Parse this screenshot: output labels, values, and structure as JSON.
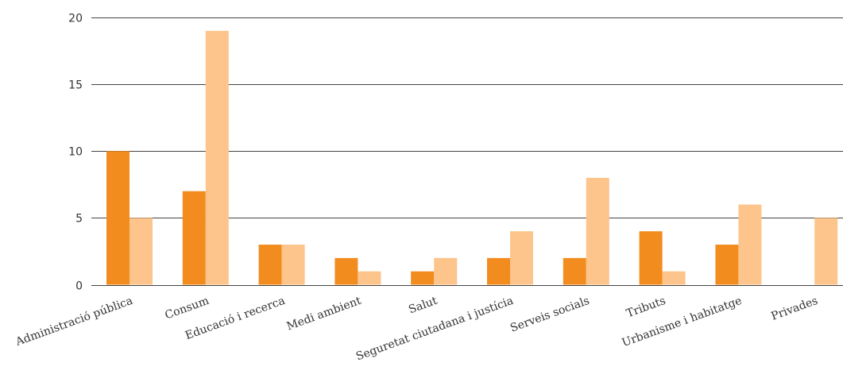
{
  "chart_data": {
    "type": "bar",
    "title": "",
    "xlabel": "",
    "ylabel": "",
    "categories": [
      "Administració pública",
      "Consum",
      "Educació i recerca",
      "Medi ambient",
      "Salut",
      "Seguretat ciutadana i justícia",
      "Serveis socials",
      "Tributs",
      "Urbanisme i habitatge",
      "Privades"
    ],
    "series": [
      {
        "color": "#f28c1e",
        "values": [
          10,
          7,
          3,
          2,
          1,
          2,
          2,
          4,
          3,
          0
        ]
      },
      {
        "color": "#fdc48b",
        "values": [
          5,
          19,
          3,
          1,
          2,
          4,
          8,
          1,
          6,
          5
        ]
      }
    ],
    "ylim": [
      0,
      20
    ],
    "yticks": [
      0,
      5,
      10,
      15,
      20
    ],
    "grid": true,
    "legend": "none"
  }
}
